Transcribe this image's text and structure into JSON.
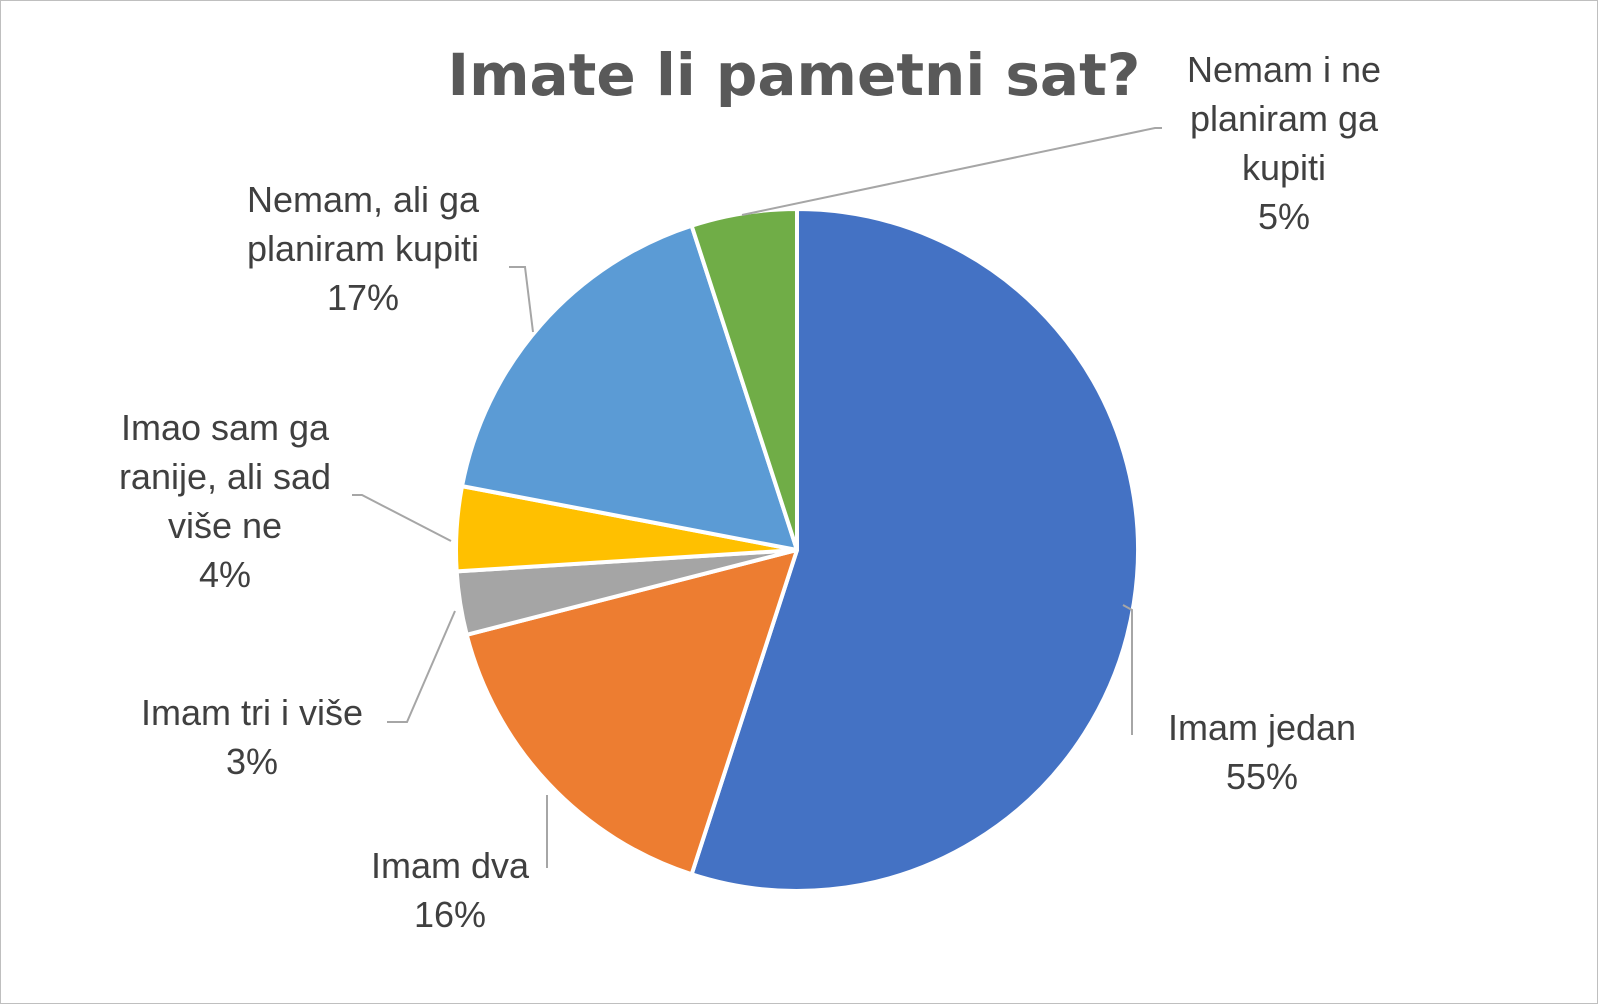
{
  "chart_data": {
    "type": "pie",
    "title": "Imate li pametni sat?",
    "slices": [
      {
        "label": "Imam jedan",
        "label_lines": [
          "Imam jedan"
        ],
        "value": 55,
        "value_label": "55%",
        "color": "#4472C4"
      },
      {
        "label": "Imam dva",
        "label_lines": [
          "Imam dva"
        ],
        "value": 16,
        "value_label": "16%",
        "color": "#ED7D31"
      },
      {
        "label": "Imam tri i više",
        "label_lines": [
          "Imam tri i više"
        ],
        "value": 3,
        "value_label": "3%",
        "color": "#A5A5A5"
      },
      {
        "label": "Imao sam ga ranije, ali sad više ne",
        "label_lines": [
          "Imao sam ga",
          "ranije, ali sad",
          "više ne"
        ],
        "value": 4,
        "value_label": "4%",
        "color": "#FFC000"
      },
      {
        "label": "Nemam, ali ga planiram kupiti",
        "label_lines": [
          "Nemam, ali ga",
          "planiram kupiti"
        ],
        "value": 17,
        "value_label": "17%",
        "color": "#5B9BD5"
      },
      {
        "label": "Nemam i ne planiram ga kupiti",
        "label_lines": [
          "Nemam i ne",
          "planiram ga",
          "kupiti"
        ],
        "value": 5,
        "value_label": "5%",
        "color": "#70AD47"
      }
    ],
    "start_angle_deg": 0,
    "direction": "clockwise",
    "legend": "none",
    "data_labels": "outside-with-leader-lines"
  }
}
